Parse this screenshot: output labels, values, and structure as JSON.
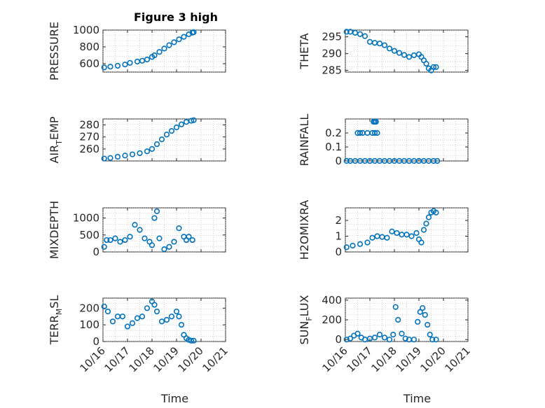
{
  "figure_title": "Figure 3 high",
  "marker_color": "#0072BD",
  "chart_data": [
    {
      "type": "scatter",
      "title": "Figure 3 high",
      "ylabel": "PRESSURE",
      "xlim": [
        0,
        5
      ],
      "ylim": [
        500,
        1000
      ],
      "yticks": [
        600,
        800,
        1000
      ],
      "yticklabels": [
        "600",
        "800",
        "1000"
      ],
      "xticks": [
        0,
        1,
        2,
        3,
        4,
        5
      ],
      "xticklabels": [],
      "x": [
        0.05,
        0.3,
        0.6,
        0.9,
        1.1,
        1.4,
        1.6,
        1.8,
        2.0,
        2.1,
        2.3,
        2.5,
        2.7,
        2.9,
        3.1,
        3.3,
        3.5,
        3.65,
        3.7
      ],
      "y": [
        555,
        565,
        575,
        590,
        610,
        625,
        635,
        650,
        680,
        700,
        740,
        780,
        820,
        855,
        890,
        920,
        950,
        970,
        975
      ]
    },
    {
      "type": "scatter",
      "ylabel": "THETA",
      "xlim": [
        0,
        5
      ],
      "ylim": [
        284.5,
        297
      ],
      "yticks": [
        285,
        290,
        295
      ],
      "yticklabels": [
        "285",
        "290",
        "295"
      ],
      "xticks": [
        0,
        1,
        2,
        3,
        4,
        5
      ],
      "xticklabels": [],
      "x": [
        0.05,
        0.2,
        0.4,
        0.6,
        0.8,
        1.0,
        1.2,
        1.4,
        1.6,
        1.8,
        2.0,
        2.2,
        2.4,
        2.6,
        2.8,
        3.0,
        3.1,
        3.2,
        3.3,
        3.4,
        3.5,
        3.6,
        3.7
      ],
      "y": [
        296.5,
        296.5,
        296.2,
        295.8,
        295.2,
        293.5,
        293.2,
        293.0,
        292.5,
        291.5,
        290.8,
        290.2,
        289.6,
        289.0,
        289.5,
        289.8,
        289.0,
        288.0,
        287.0,
        285.6,
        285.0,
        286.0,
        286.0
      ]
    },
    {
      "type": "scatter",
      "ylabel": "AIR_TEMP",
      "ylabel_main": "AIR",
      "ylabel_sub": "T",
      "ylabel_rest": "EMP",
      "xlim": [
        0,
        5
      ],
      "ylim": [
        250,
        285
      ],
      "yticks": [
        260,
        270,
        280
      ],
      "yticklabels": [
        "260",
        "270",
        "280"
      ],
      "xticks": [
        0,
        1,
        2,
        3,
        4,
        5
      ],
      "xticklabels": [],
      "x": [
        0.05,
        0.3,
        0.6,
        0.9,
        1.2,
        1.5,
        1.8,
        2.0,
        2.2,
        2.4,
        2.6,
        2.8,
        3.0,
        3.2,
        3.4,
        3.6,
        3.7
      ],
      "y": [
        252,
        252.5,
        253.5,
        254.5,
        255.5,
        256.5,
        258,
        260,
        264,
        268,
        272,
        275,
        278,
        280.5,
        282.5,
        283.5,
        284
      ]
    },
    {
      "type": "scatter",
      "ylabel": "RAINFALL",
      "xlim": [
        0,
        5
      ],
      "ylim": [
        0,
        0.3
      ],
      "yticks": [
        0,
        0.1,
        0.2
      ],
      "yticklabels": [
        "0",
        "0.1",
        "0.2"
      ],
      "xticks": [
        0,
        1,
        2,
        3,
        4,
        5
      ],
      "xticklabels": [],
      "x": [
        0.05,
        0.2,
        0.4,
        0.6,
        0.8,
        1.0,
        1.2,
        1.4,
        1.6,
        1.8,
        2.0,
        2.2,
        2.4,
        2.6,
        2.8,
        3.0,
        3.2,
        3.4,
        3.6,
        3.75,
        0.5,
        0.6,
        0.7,
        0.9,
        1.1,
        1.2,
        1.3,
        1.15,
        1.2,
        1.25
      ],
      "y": [
        0,
        0,
        0,
        0,
        0,
        0,
        0,
        0,
        0,
        0,
        0,
        0,
        0,
        0,
        0,
        0,
        0,
        0,
        0,
        0,
        0.2,
        0.2,
        0.2,
        0.2,
        0.2,
        0.2,
        0.2,
        0.28,
        0.28,
        0.28
      ]
    },
    {
      "type": "scatter",
      "ylabel": "MIXDEPTH",
      "xlim": [
        0,
        5
      ],
      "ylim": [
        0,
        1300
      ],
      "yticks": [
        0,
        500,
        1000
      ],
      "yticklabels": [
        "0",
        "500",
        "1000"
      ],
      "xticks": [
        0,
        1,
        2,
        3,
        4,
        5
      ],
      "xticklabels": [],
      "x": [
        0.05,
        0.15,
        0.3,
        0.5,
        0.7,
        0.9,
        1.1,
        1.3,
        1.5,
        1.7,
        1.9,
        2.0,
        2.1,
        2.2,
        2.3,
        2.5,
        2.7,
        2.9,
        3.1,
        3.3,
        3.4,
        3.5,
        3.65
      ],
      "y": [
        150,
        350,
        350,
        400,
        300,
        350,
        450,
        800,
        650,
        400,
        300,
        200,
        1000,
        1200,
        400,
        80,
        150,
        300,
        700,
        450,
        350,
        450,
        350
      ]
    },
    {
      "type": "scatter",
      "ylabel": "H2OMIXRA",
      "xlim": [
        0,
        5
      ],
      "ylim": [
        0,
        2.8
      ],
      "yticks": [
        0,
        1,
        2
      ],
      "yticklabels": [
        "0",
        "1",
        "2"
      ],
      "xticks": [
        0,
        1,
        2,
        3,
        4,
        5
      ],
      "xticklabels": [],
      "x": [
        0.05,
        0.3,
        0.6,
        0.9,
        1.1,
        1.3,
        1.5,
        1.7,
        1.9,
        2.1,
        2.3,
        2.5,
        2.7,
        2.9,
        3.0,
        3.1,
        3.2,
        3.3,
        3.4,
        3.5,
        3.6,
        3.7
      ],
      "y": [
        0.3,
        0.4,
        0.5,
        0.6,
        0.9,
        1.0,
        0.95,
        0.9,
        1.3,
        1.2,
        1.1,
        1.1,
        1.0,
        1.2,
        0.8,
        0.6,
        1.4,
        1.8,
        2.2,
        2.5,
        2.6,
        2.5
      ]
    },
    {
      "type": "scatter",
      "ylabel": "TERR_MSL",
      "ylabel_main": "TERR",
      "ylabel_sub": "M",
      "ylabel_rest": "SL",
      "xlim": [
        0,
        5
      ],
      "ylim": [
        0,
        260
      ],
      "yticks": [
        0,
        100,
        200
      ],
      "yticklabels": [
        "0",
        "100",
        "200"
      ],
      "xticks": [
        0,
        1,
        2,
        3,
        4,
        5
      ],
      "xticklabels": [
        "10/16",
        "10/17",
        "10/18",
        "10/19",
        "10/20",
        "10/21"
      ],
      "xlabel": "Time",
      "x": [
        0.05,
        0.2,
        0.4,
        0.6,
        0.8,
        1.0,
        1.2,
        1.4,
        1.6,
        1.8,
        2.0,
        2.1,
        2.2,
        2.4,
        2.6,
        2.8,
        3.0,
        3.1,
        3.2,
        3.3,
        3.4,
        3.5,
        3.6,
        3.7
      ],
      "y": [
        210,
        180,
        120,
        150,
        150,
        90,
        110,
        140,
        150,
        200,
        240,
        220,
        180,
        120,
        130,
        150,
        180,
        150,
        100,
        40,
        20,
        10,
        5,
        5
      ]
    },
    {
      "type": "scatter",
      "ylabel": "SUN_FLUX",
      "ylabel_main": "SUN",
      "ylabel_sub": "F",
      "ylabel_rest": "LUX",
      "xlim": [
        0,
        5
      ],
      "ylim": [
        -20,
        420
      ],
      "yticks": [
        0,
        200,
        400
      ],
      "yticklabels": [
        "0",
        "200",
        "400"
      ],
      "xticks": [
        0,
        1,
        2,
        3,
        4,
        5
      ],
      "xticklabels": [
        "10/16",
        "10/17",
        "10/18",
        "10/19",
        "10/20",
        "10/21"
      ],
      "xlabel": "Time",
      "x": [
        0.05,
        0.2,
        0.35,
        0.5,
        0.65,
        0.8,
        1.0,
        1.2,
        1.4,
        1.6,
        1.8,
        1.95,
        2.05,
        2.15,
        2.3,
        2.45,
        2.6,
        2.8,
        2.95,
        3.05,
        3.15,
        3.25,
        3.35,
        3.45,
        3.55,
        3.7
      ],
      "y": [
        0,
        10,
        40,
        60,
        20,
        0,
        10,
        20,
        50,
        20,
        0,
        50,
        330,
        200,
        60,
        10,
        0,
        0,
        180,
        280,
        320,
        250,
        150,
        50,
        0,
        0
      ]
    }
  ]
}
